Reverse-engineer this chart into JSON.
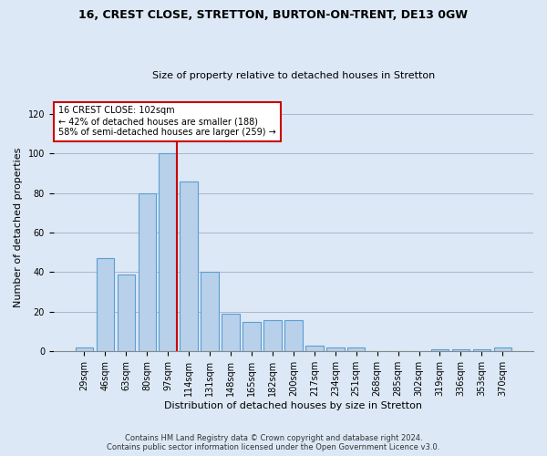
{
  "title1": "16, CREST CLOSE, STRETTON, BURTON-ON-TRENT, DE13 0GW",
  "title2": "Size of property relative to detached houses in Stretton",
  "xlabel": "Distribution of detached houses by size in Stretton",
  "ylabel": "Number of detached properties",
  "categories": [
    "29sqm",
    "46sqm",
    "63sqm",
    "80sqm",
    "97sqm",
    "114sqm",
    "131sqm",
    "148sqm",
    "165sqm",
    "182sqm",
    "200sqm",
    "217sqm",
    "234sqm",
    "251sqm",
    "268sqm",
    "285sqm",
    "302sqm",
    "319sqm",
    "336sqm",
    "353sqm",
    "370sqm"
  ],
  "values": [
    2,
    47,
    39,
    80,
    100,
    86,
    40,
    19,
    15,
    16,
    16,
    3,
    2,
    2,
    0,
    0,
    0,
    1,
    1,
    1,
    2
  ],
  "bar_color": "#b8d0ea",
  "bar_edge_color": "#5a9fd4",
  "annotation_line1": "16 CREST CLOSE: 102sqm",
  "annotation_line2": "← 42% of detached houses are smaller (188)",
  "annotation_line3": "58% of semi-detached houses are larger (259) →",
  "vline_color": "#cc0000",
  "box_edge_color": "#cc0000",
  "ylim": [
    0,
    125
  ],
  "yticks": [
    0,
    20,
    40,
    60,
    80,
    100,
    120
  ],
  "footer1": "Contains HM Land Registry data © Crown copyright and database right 2024.",
  "footer2": "Contains public sector information licensed under the Open Government Licence v3.0.",
  "bg_color": "#dce8f5",
  "plot_bg_color": "#dce8f5",
  "title_fontsize": 9,
  "subtitle_fontsize": 8,
  "tick_fontsize": 7,
  "ylabel_fontsize": 8,
  "xlabel_fontsize": 8
}
